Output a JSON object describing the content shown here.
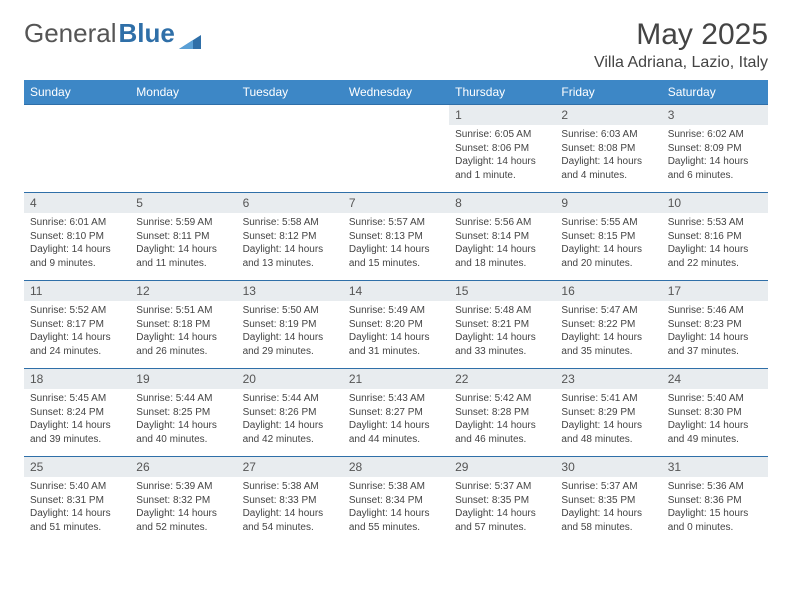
{
  "brand": {
    "part1": "General",
    "part2": "Blue"
  },
  "title": "May 2025",
  "location": "Villa Adriana, Lazio, Italy",
  "colors": {
    "header_bg": "#3d87c6",
    "header_text": "#ffffff",
    "daynum_bg": "#e8ecef",
    "row_border": "#2f6fa8",
    "logo_blue": "#2f6fa8"
  },
  "dayHeaders": [
    "Sunday",
    "Monday",
    "Tuesday",
    "Wednesday",
    "Thursday",
    "Friday",
    "Saturday"
  ],
  "weeks": [
    [
      {
        "n": "",
        "lines": []
      },
      {
        "n": "",
        "lines": []
      },
      {
        "n": "",
        "lines": []
      },
      {
        "n": "",
        "lines": []
      },
      {
        "n": "1",
        "lines": [
          "Sunrise: 6:05 AM",
          "Sunset: 8:06 PM",
          "Daylight: 14 hours and 1 minute."
        ]
      },
      {
        "n": "2",
        "lines": [
          "Sunrise: 6:03 AM",
          "Sunset: 8:08 PM",
          "Daylight: 14 hours and 4 minutes."
        ]
      },
      {
        "n": "3",
        "lines": [
          "Sunrise: 6:02 AM",
          "Sunset: 8:09 PM",
          "Daylight: 14 hours and 6 minutes."
        ]
      }
    ],
    [
      {
        "n": "4",
        "lines": [
          "Sunrise: 6:01 AM",
          "Sunset: 8:10 PM",
          "Daylight: 14 hours and 9 minutes."
        ]
      },
      {
        "n": "5",
        "lines": [
          "Sunrise: 5:59 AM",
          "Sunset: 8:11 PM",
          "Daylight: 14 hours and 11 minutes."
        ]
      },
      {
        "n": "6",
        "lines": [
          "Sunrise: 5:58 AM",
          "Sunset: 8:12 PM",
          "Daylight: 14 hours and 13 minutes."
        ]
      },
      {
        "n": "7",
        "lines": [
          "Sunrise: 5:57 AM",
          "Sunset: 8:13 PM",
          "Daylight: 14 hours and 15 minutes."
        ]
      },
      {
        "n": "8",
        "lines": [
          "Sunrise: 5:56 AM",
          "Sunset: 8:14 PM",
          "Daylight: 14 hours and 18 minutes."
        ]
      },
      {
        "n": "9",
        "lines": [
          "Sunrise: 5:55 AM",
          "Sunset: 8:15 PM",
          "Daylight: 14 hours and 20 minutes."
        ]
      },
      {
        "n": "10",
        "lines": [
          "Sunrise: 5:53 AM",
          "Sunset: 8:16 PM",
          "Daylight: 14 hours and 22 minutes."
        ]
      }
    ],
    [
      {
        "n": "11",
        "lines": [
          "Sunrise: 5:52 AM",
          "Sunset: 8:17 PM",
          "Daylight: 14 hours and 24 minutes."
        ]
      },
      {
        "n": "12",
        "lines": [
          "Sunrise: 5:51 AM",
          "Sunset: 8:18 PM",
          "Daylight: 14 hours and 26 minutes."
        ]
      },
      {
        "n": "13",
        "lines": [
          "Sunrise: 5:50 AM",
          "Sunset: 8:19 PM",
          "Daylight: 14 hours and 29 minutes."
        ]
      },
      {
        "n": "14",
        "lines": [
          "Sunrise: 5:49 AM",
          "Sunset: 8:20 PM",
          "Daylight: 14 hours and 31 minutes."
        ]
      },
      {
        "n": "15",
        "lines": [
          "Sunrise: 5:48 AM",
          "Sunset: 8:21 PM",
          "Daylight: 14 hours and 33 minutes."
        ]
      },
      {
        "n": "16",
        "lines": [
          "Sunrise: 5:47 AM",
          "Sunset: 8:22 PM",
          "Daylight: 14 hours and 35 minutes."
        ]
      },
      {
        "n": "17",
        "lines": [
          "Sunrise: 5:46 AM",
          "Sunset: 8:23 PM",
          "Daylight: 14 hours and 37 minutes."
        ]
      }
    ],
    [
      {
        "n": "18",
        "lines": [
          "Sunrise: 5:45 AM",
          "Sunset: 8:24 PM",
          "Daylight: 14 hours and 39 minutes."
        ]
      },
      {
        "n": "19",
        "lines": [
          "Sunrise: 5:44 AM",
          "Sunset: 8:25 PM",
          "Daylight: 14 hours and 40 minutes."
        ]
      },
      {
        "n": "20",
        "lines": [
          "Sunrise: 5:44 AM",
          "Sunset: 8:26 PM",
          "Daylight: 14 hours and 42 minutes."
        ]
      },
      {
        "n": "21",
        "lines": [
          "Sunrise: 5:43 AM",
          "Sunset: 8:27 PM",
          "Daylight: 14 hours and 44 minutes."
        ]
      },
      {
        "n": "22",
        "lines": [
          "Sunrise: 5:42 AM",
          "Sunset: 8:28 PM",
          "Daylight: 14 hours and 46 minutes."
        ]
      },
      {
        "n": "23",
        "lines": [
          "Sunrise: 5:41 AM",
          "Sunset: 8:29 PM",
          "Daylight: 14 hours and 48 minutes."
        ]
      },
      {
        "n": "24",
        "lines": [
          "Sunrise: 5:40 AM",
          "Sunset: 8:30 PM",
          "Daylight: 14 hours and 49 minutes."
        ]
      }
    ],
    [
      {
        "n": "25",
        "lines": [
          "Sunrise: 5:40 AM",
          "Sunset: 8:31 PM",
          "Daylight: 14 hours and 51 minutes."
        ]
      },
      {
        "n": "26",
        "lines": [
          "Sunrise: 5:39 AM",
          "Sunset: 8:32 PM",
          "Daylight: 14 hours and 52 minutes."
        ]
      },
      {
        "n": "27",
        "lines": [
          "Sunrise: 5:38 AM",
          "Sunset: 8:33 PM",
          "Daylight: 14 hours and 54 minutes."
        ]
      },
      {
        "n": "28",
        "lines": [
          "Sunrise: 5:38 AM",
          "Sunset: 8:34 PM",
          "Daylight: 14 hours and 55 minutes."
        ]
      },
      {
        "n": "29",
        "lines": [
          "Sunrise: 5:37 AM",
          "Sunset: 8:35 PM",
          "Daylight: 14 hours and 57 minutes."
        ]
      },
      {
        "n": "30",
        "lines": [
          "Sunrise: 5:37 AM",
          "Sunset: 8:35 PM",
          "Daylight: 14 hours and 58 minutes."
        ]
      },
      {
        "n": "31",
        "lines": [
          "Sunrise: 5:36 AM",
          "Sunset: 8:36 PM",
          "Daylight: 15 hours and 0 minutes."
        ]
      }
    ]
  ]
}
